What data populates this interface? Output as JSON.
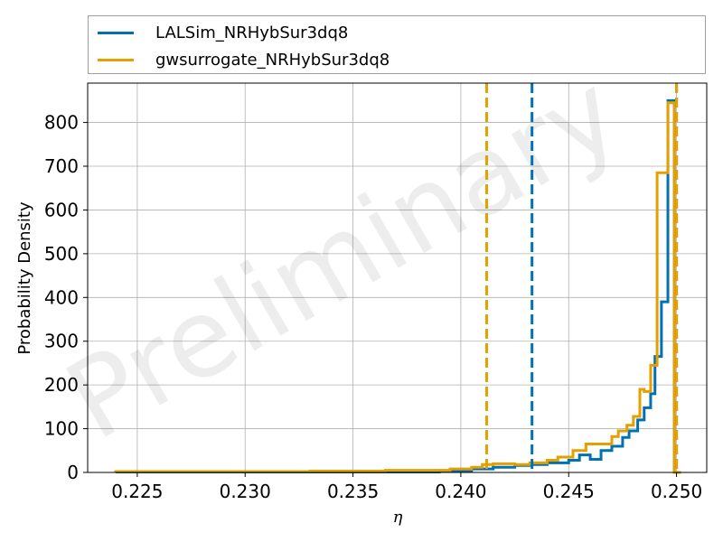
{
  "chart_data": {
    "type": "histogram",
    "title": "",
    "xlabel": "η",
    "ylabel": "Probability Density",
    "xlim": [
      0.2227,
      0.2514
    ],
    "ylim": [
      0,
      890
    ],
    "xticks": [
      0.225,
      0.23,
      0.235,
      0.24,
      0.245,
      0.25
    ],
    "xtick_labels": [
      "0.225",
      "0.230",
      "0.235",
      "0.240",
      "0.245",
      "0.250"
    ],
    "yticks": [
      0,
      100,
      200,
      300,
      400,
      500,
      600,
      700,
      800
    ],
    "ytick_labels": [
      "0",
      "100",
      "200",
      "300",
      "400",
      "500",
      "600",
      "700",
      "800"
    ],
    "grid": true,
    "legend_position": "top",
    "watermark": "Preliminary",
    "series": [
      {
        "name": "LALSim_NRHybSur3dq8",
        "color": "#0072B2",
        "bin_edges": [
          0.224,
          0.239,
          0.2405,
          0.2415,
          0.2425,
          0.2432,
          0.244,
          0.245,
          0.2455,
          0.246,
          0.2465,
          0.247,
          0.2475,
          0.2478,
          0.2482,
          0.2485,
          0.2488,
          0.249,
          0.2493,
          0.2496,
          0.2499,
          0.2502
        ],
        "densities": [
          1,
          3,
          8,
          12,
          16,
          18,
          22,
          28,
          40,
          30,
          50,
          60,
          80,
          95,
          120,
          148,
          180,
          265,
          390,
          850,
          0
        ]
      },
      {
        "name": "gwsurrogate_NRHybSur3dq8",
        "color": "#E69F00",
        "bin_edges": [
          0.224,
          0.233,
          0.2365,
          0.2395,
          0.2405,
          0.241,
          0.2415,
          0.2425,
          0.2432,
          0.244,
          0.2445,
          0.2452,
          0.2458,
          0.247,
          0.2473,
          0.2477,
          0.248,
          0.2483,
          0.2485,
          0.2488,
          0.2491,
          0.2496,
          0.2499,
          0.2502
        ],
        "densities": [
          2,
          3,
          5,
          8,
          12,
          18,
          20,
          18,
          22,
          28,
          35,
          50,
          65,
          82,
          95,
          108,
          128,
          190,
          185,
          245,
          685,
          845,
          0
        ]
      }
    ],
    "vlines": [
      {
        "x": 0.2433,
        "color": "#0072B2",
        "style": "dashed"
      },
      {
        "x": 0.2412,
        "color": "#E69F00",
        "style": "dashed"
      },
      {
        "x": 0.25,
        "color": "#0072B2",
        "style": "dashed"
      },
      {
        "x": 0.25,
        "color": "#E69F00",
        "style": "dashed"
      }
    ]
  }
}
